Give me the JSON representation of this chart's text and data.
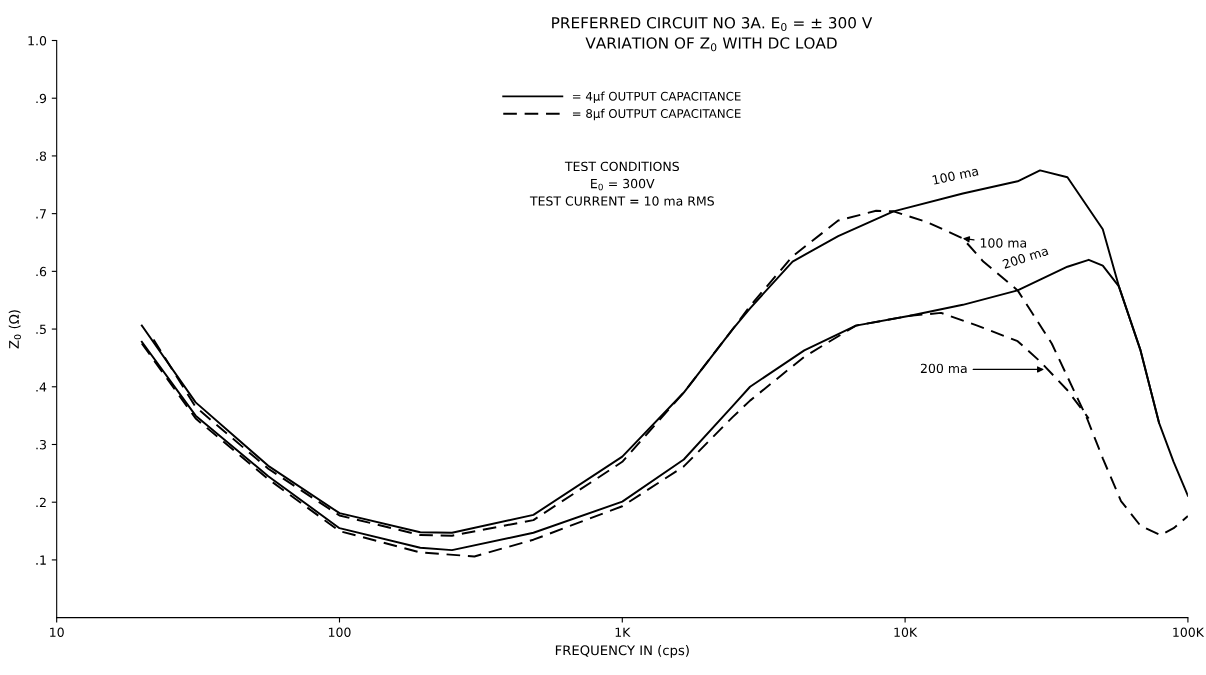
{
  "chart_data": {
    "type": "line",
    "title": "PREFERRED CIRCUIT NO 3A. E$_{0}$ = ± 300 V",
    "subtitle": "VARIATION OF Z$_{0}$ WITH DC LOAD",
    "xlabel": "FREQUENCY IN (cps)",
    "ylabel": "Z$_{0}$ (Ω)",
    "log": "x",
    "xlim": [
      10,
      100000
    ],
    "xticks": [
      {
        "value": 10,
        "label": "10"
      },
      {
        "value": 100,
        "label": "100"
      },
      {
        "value": 1000,
        "label": "1K"
      },
      {
        "value": 10000,
        "label": "10K"
      },
      {
        "value": 100000,
        "label": "100K"
      }
    ],
    "ylim": [
      0,
      1.0
    ],
    "yticks": [
      {
        "value": 0.1,
        "label": ".1"
      },
      {
        "value": 0.2,
        "label": ".2"
      },
      {
        "value": 0.3,
        "label": ".3"
      },
      {
        "value": 0.4,
        "label": ".4"
      },
      {
        "value": 0.5,
        "label": ".5"
      },
      {
        "value": 0.6,
        "label": ".6"
      },
      {
        "value": 0.7,
        "label": ".7"
      },
      {
        "value": 0.8,
        "label": ".8"
      },
      {
        "value": 0.9,
        "label": ".9"
      },
      {
        "value": 1.0,
        "label": "1.0"
      }
    ],
    "grid": false,
    "legend": "top",
    "marker": "none",
    "series": [
      {
        "name": "= 4µf OUTPUT CAPACITANCE",
        "color": "#000000",
        "line_style": "solid",
        "x": [
          20,
          31,
          56,
          100,
          193,
          250,
          485,
          1000,
          1650,
          2450,
          2830,
          4000,
          5800,
          9100,
          16000,
          25000,
          30000,
          37500,
          50000,
          57000,
          68000,
          79000,
          89000,
          100000
        ],
        "values": [
          0.506,
          0.373,
          0.263,
          0.181,
          0.148,
          0.147,
          0.178,
          0.279,
          0.39,
          0.499,
          0.536,
          0.617,
          0.661,
          0.704,
          0.735,
          0.756,
          0.775,
          0.763,
          0.673,
          0.574,
          0.463,
          0.338,
          0.27,
          0.211
        ]
      },
      {
        "color": "#000000",
        "line_style": "solid",
        "x": [
          20,
          31,
          56,
          100,
          193,
          250,
          485,
          1000,
          1650,
          2450,
          2830,
          4400,
          6700,
          10400,
          16000,
          25000,
          37500,
          44600,
          50000,
          57000,
          68000,
          79000
        ],
        "values": [
          0.478,
          0.35,
          0.245,
          0.155,
          0.121,
          0.117,
          0.147,
          0.201,
          0.274,
          0.366,
          0.4,
          0.463,
          0.506,
          0.523,
          0.542,
          0.567,
          0.608,
          0.62,
          0.61,
          0.574,
          0.463,
          0.338
        ]
      },
      {
        "name": "= 8µf OUTPUT CAPACITANCE",
        "color": "#000000",
        "line_style": "dashed",
        "x": [
          22,
          31,
          56,
          100,
          193,
          250,
          485,
          1000,
          1650,
          2450,
          2830,
          4000,
          5800,
          7900,
          9100,
          12000,
          16000,
          18900,
          25000,
          33000,
          44000,
          50000,
          58000,
          68000,
          80000,
          89000,
          100000
        ],
        "values": [
          0.482,
          0.365,
          0.258,
          0.177,
          0.143,
          0.142,
          0.169,
          0.27,
          0.39,
          0.499,
          0.54,
          0.626,
          0.688,
          0.705,
          0.704,
          0.685,
          0.657,
          0.617,
          0.567,
          0.475,
          0.345,
          0.276,
          0.202,
          0.159,
          0.143,
          0.155,
          0.176
        ]
      },
      {
        "color": "#000000",
        "line_style": "dashed",
        "x": [
          20,
          31,
          56,
          100,
          193,
          300,
          485,
          1000,
          1650,
          2450,
          2830,
          4400,
          6700,
          10400,
          13400,
          18000,
          25000,
          30000,
          37500,
          44600
        ],
        "values": [
          0.475,
          0.345,
          0.24,
          0.15,
          0.113,
          0.106,
          0.135,
          0.193,
          0.262,
          0.347,
          0.376,
          0.452,
          0.506,
          0.523,
          0.528,
          0.506,
          0.479,
          0.444,
          0.394,
          0.345
        ]
      }
    ],
    "annotations": [
      {
        "text": "100 ma",
        "x": 20000,
        "y": 0.745
      },
      {
        "text": "100 ma",
        "x": 16000,
        "y": 0.657
      },
      {
        "text": "200 ma",
        "x": 37500,
        "y": 0.608
      },
      {
        "text": "200 ma",
        "x": 31000,
        "y": 0.43
      },
      "TEST CONDITIONS",
      "E$_{0}$ = 300V",
      "TEST CURRENT = 10 ma RMS"
    ]
  }
}
